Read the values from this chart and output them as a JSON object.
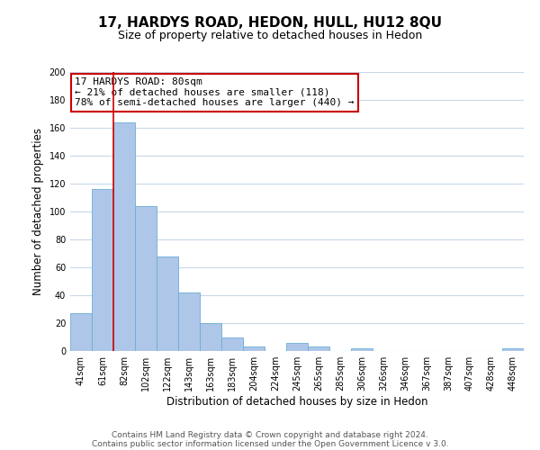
{
  "title": "17, HARDYS ROAD, HEDON, HULL, HU12 8QU",
  "subtitle": "Size of property relative to detached houses in Hedon",
  "bar_labels": [
    "41sqm",
    "61sqm",
    "82sqm",
    "102sqm",
    "122sqm",
    "143sqm",
    "163sqm",
    "183sqm",
    "204sqm",
    "224sqm",
    "245sqm",
    "265sqm",
    "285sqm",
    "306sqm",
    "326sqm",
    "346sqm",
    "367sqm",
    "387sqm",
    "407sqm",
    "428sqm",
    "448sqm"
  ],
  "bar_values": [
    27,
    116,
    164,
    104,
    68,
    42,
    20,
    10,
    3,
    0,
    6,
    3,
    0,
    2,
    0,
    0,
    0,
    0,
    0,
    0,
    2
  ],
  "bar_color": "#aec6e8",
  "bar_edgecolor": "#6baed6",
  "ylim_max": 200,
  "yticks": [
    0,
    20,
    40,
    60,
    80,
    100,
    120,
    140,
    160,
    180,
    200
  ],
  "ylabel": "Number of detached properties",
  "xlabel": "Distribution of detached houses by size in Hedon",
  "red_line_index": 1.5,
  "annotation_title": "17 HARDYS ROAD: 80sqm",
  "annotation_line1": "← 21% of detached houses are smaller (118)",
  "annotation_line2": "78% of semi-detached houses are larger (440) →",
  "annotation_box_edgecolor": "#cc0000",
  "red_line_color": "#cc0000",
  "footer1": "Contains HM Land Registry data © Crown copyright and database right 2024.",
  "footer2": "Contains public sector information licensed under the Open Government Licence v 3.0.",
  "background_color": "#ffffff",
  "grid_color": "#c8d8e8",
  "title_fontsize": 11,
  "subtitle_fontsize": 9,
  "ylabel_fontsize": 8.5,
  "xlabel_fontsize": 8.5,
  "tick_fontsize": 7,
  "annotation_fontsize": 8,
  "footer_fontsize": 6.5
}
